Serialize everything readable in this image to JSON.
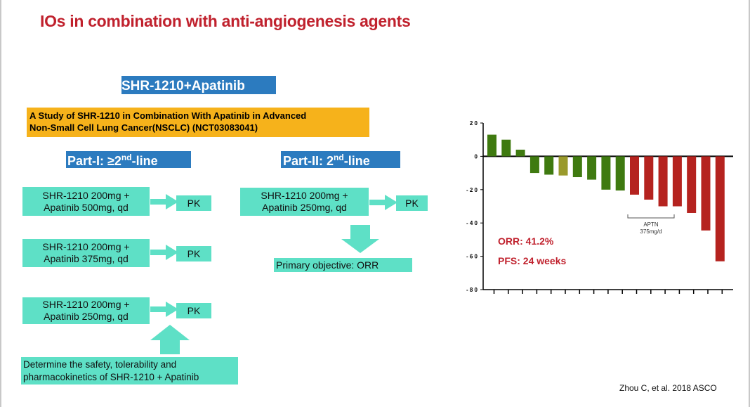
{
  "slide": {
    "title": "IOs in combination with anti-angiogenesis agents",
    "drug_header": "SHR-1210+Apatinib",
    "study_title_line1": "A Study of SHR-1210 in Combination With Apatinib in Advanced",
    "study_title_line2": "Non-Small Cell Lung Cancer(NSCLC) (NCT03083041)",
    "part1_header": {
      "prefix": "Part-I: ≥2",
      "sup": "nd",
      "suffix": "-line"
    },
    "part2_header": {
      "prefix": "Part-II: 2",
      "sup": "nd",
      "suffix": "-line"
    },
    "part1_arms": [
      {
        "line1": "SHR-1210 200mg +",
        "line2": "Apatinib 500mg, qd",
        "result": "PK"
      },
      {
        "line1": "SHR-1210 200mg +",
        "line2": "Apatinib 375mg, qd",
        "result": "PK"
      },
      {
        "line1": "SHR-1210 200mg +",
        "line2": "Apatinib 250mg, qd",
        "result": "PK"
      }
    ],
    "part2_arm": {
      "line1": "SHR-1210 200mg +",
      "line2": "Apatinib 250mg, qd",
      "result": "PK"
    },
    "primary_objective": "Primary objective: ORR",
    "safety_line1": "Determine the safety, tolerability and",
    "safety_line2": "pharmacokinetics of SHR-1210 + Apatinib",
    "citation": "Zhou C, et al. 2018 ASCO"
  },
  "chart_data": {
    "type": "bar",
    "title": "",
    "xlabel": "",
    "ylabel": "",
    "ylim": [
      -80,
      20
    ],
    "yticks": [
      20,
      0,
      -20,
      -40,
      -60,
      -80
    ],
    "ytick_labels": [
      "2 0",
      "0",
      "- 2 0",
      "- 4 0",
      "- 6 0",
      "- 8 0"
    ],
    "values": [
      13,
      10,
      4,
      -10,
      -11,
      -11.5,
      -12.5,
      -14,
      -20,
      -20.5,
      -23,
      -26,
      -30,
      -30,
      -34,
      -44.5,
      -63
    ],
    "colors": [
      "#3f7a10",
      "#3f7a10",
      "#3f7a10",
      "#3f7a10",
      "#3f7a10",
      "#9a9a2c",
      "#3f7a10",
      "#3f7a10",
      "#3f7a10",
      "#3f7a10",
      "#b5231f",
      "#b5231f",
      "#b5231f",
      "#b5231f",
      "#b5231f",
      "#b5231f",
      "#b5231f"
    ],
    "annotation": {
      "line1": "APTN",
      "line2": "375mg/d"
    },
    "orr_label": "ORR: 41.2%",
    "pfs_label": "PFS: 24 weeks"
  }
}
